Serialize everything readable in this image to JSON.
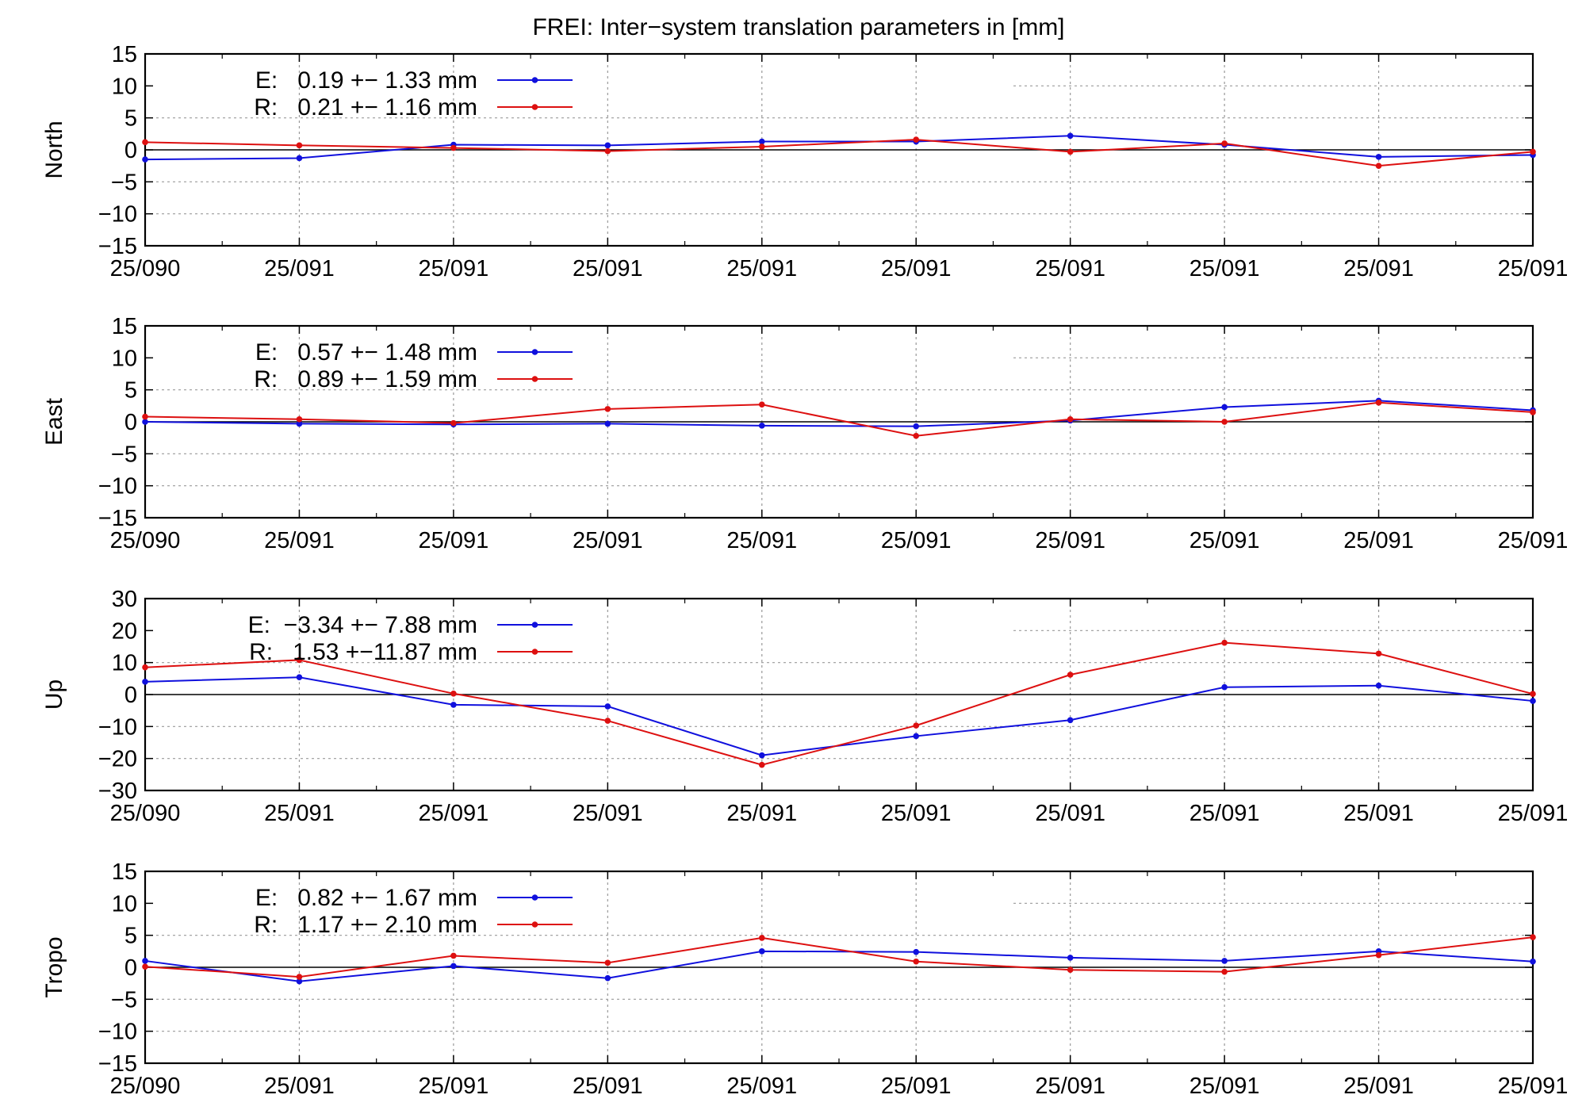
{
  "title": "FREI: Inter−system translation parameters in [mm]",
  "colors": {
    "E": "#1010dd",
    "R": "#dd1010",
    "axis": "#000000",
    "grid": "#999999"
  },
  "chart_data": [
    {
      "type": "line",
      "ylabel": "North",
      "ylim": [
        -15,
        15
      ],
      "yticks": [
        15,
        10,
        5,
        0,
        -5,
        -10,
        -15
      ],
      "ytick_labels": [
        "15",
        "10",
        "5",
        "0",
        "−5",
        "−10",
        "−15"
      ],
      "xticks": [
        "25/090",
        "25/091",
        "25/091",
        "25/091",
        "25/091",
        "25/091",
        "25/091",
        "25/091",
        "25/091",
        "25/091"
      ],
      "grid": true,
      "legend_position": "top-left",
      "series": [
        {
          "name": "E",
          "legend": "E:   0.19 +− 1.33 mm",
          "color": "#1010dd",
          "values": [
            -1.5,
            -1.3,
            0.8,
            0.7,
            1.3,
            1.3,
            2.2,
            0.8,
            -1.1,
            -0.8
          ]
        },
        {
          "name": "R",
          "legend": "R:   0.21 +− 1.16 mm",
          "color": "#dd1010",
          "values": [
            1.2,
            0.7,
            0.3,
            -0.2,
            0.5,
            1.6,
            -0.3,
            1.0,
            -2.5,
            -0.3
          ]
        }
      ]
    },
    {
      "type": "line",
      "ylabel": "East",
      "ylim": [
        -15,
        15
      ],
      "yticks": [
        15,
        10,
        5,
        0,
        -5,
        -10,
        -15
      ],
      "ytick_labels": [
        "15",
        "10",
        "5",
        "0",
        "−5",
        "−10",
        "−15"
      ],
      "xticks": [
        "25/090",
        "25/091",
        "25/091",
        "25/091",
        "25/091",
        "25/091",
        "25/091",
        "25/091",
        "25/091",
        "25/091"
      ],
      "grid": true,
      "legend_position": "top-left",
      "series": [
        {
          "name": "E",
          "legend": "E:   0.57 +− 1.48 mm",
          "color": "#1010dd",
          "values": [
            0.0,
            -0.3,
            -0.4,
            -0.3,
            -0.6,
            -0.7,
            0.2,
            2.3,
            3.3,
            1.8
          ]
        },
        {
          "name": "R",
          "legend": "R:   0.89 +− 1.59 mm",
          "color": "#dd1010",
          "values": [
            0.8,
            0.4,
            -0.2,
            2.0,
            2.7,
            -2.2,
            0.4,
            0.0,
            3.0,
            1.5
          ]
        }
      ]
    },
    {
      "type": "line",
      "ylabel": "Up",
      "ylim": [
        -30,
        30
      ],
      "yticks": [
        30,
        20,
        10,
        0,
        -10,
        -20,
        -30
      ],
      "ytick_labels": [
        "30",
        "20",
        "10",
        "0",
        "−10",
        "−20",
        "−30"
      ],
      "xticks": [
        "25/090",
        "25/091",
        "25/091",
        "25/091",
        "25/091",
        "25/091",
        "25/091",
        "25/091",
        "25/091",
        "25/091"
      ],
      "grid": true,
      "legend_position": "top-left",
      "series": [
        {
          "name": "E",
          "legend": "E:  −3.34 +− 7.88 mm",
          "color": "#1010dd",
          "values": [
            4.0,
            5.4,
            -3.2,
            -3.7,
            -19.0,
            -13.0,
            -8.0,
            2.3,
            2.8,
            -2.0
          ]
        },
        {
          "name": "R",
          "legend": "R:   1.53 +−11.87 mm",
          "color": "#dd1010",
          "values": [
            8.5,
            10.8,
            0.3,
            -8.2,
            -22.0,
            -9.7,
            6.2,
            16.2,
            12.8,
            0.2
          ]
        }
      ]
    },
    {
      "type": "line",
      "ylabel": "Tropo",
      "ylim": [
        -15,
        15
      ],
      "yticks": [
        15,
        10,
        5,
        0,
        -5,
        -10,
        -15
      ],
      "ytick_labels": [
        "15",
        "10",
        "5",
        "0",
        "−5",
        "−10",
        "−15"
      ],
      "xticks": [
        "25/090",
        "25/091",
        "25/091",
        "25/091",
        "25/091",
        "25/091",
        "25/091",
        "25/091",
        "25/091",
        "25/091"
      ],
      "grid": true,
      "legend_position": "top-left",
      "series": [
        {
          "name": "E",
          "legend": "E:   0.82 +− 1.67 mm",
          "color": "#1010dd",
          "values": [
            1.0,
            -2.2,
            0.2,
            -1.7,
            2.5,
            2.4,
            1.5,
            1.0,
            2.5,
            0.9
          ]
        },
        {
          "name": "R",
          "legend": "R:   1.17 +− 2.10 mm",
          "color": "#dd1010",
          "values": [
            0.1,
            -1.5,
            1.8,
            0.7,
            4.6,
            0.9,
            -0.4,
            -0.7,
            1.9,
            4.7
          ]
        }
      ]
    }
  ]
}
